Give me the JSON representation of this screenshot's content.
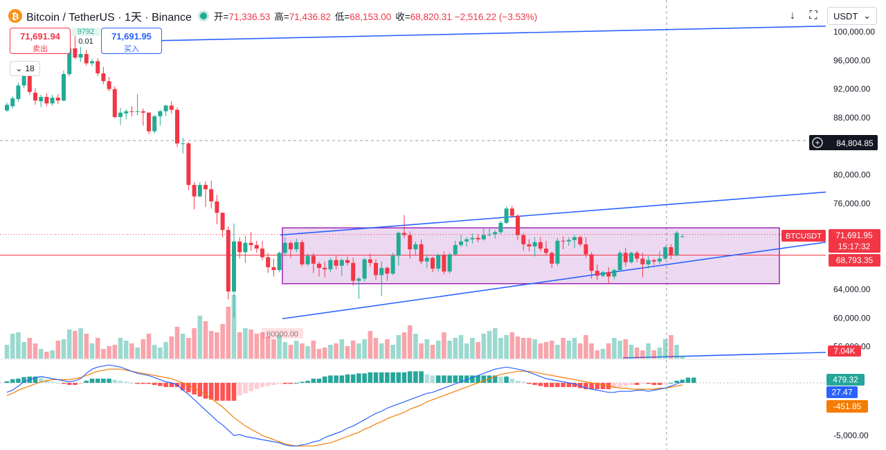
{
  "header": {
    "coin_glyph": "₿",
    "symbol": "Bitcoin / TetherUS · 1天 · Binance",
    "open_label": "开",
    "open": "71,336.53",
    "high_label": "高",
    "high": "71,436.82",
    "low_label": "低",
    "low": "68,153.00",
    "close_label": "收",
    "close": "68,820.31",
    "change": "−2,516.22 (−3.53%)",
    "download_icon": "↓",
    "fullscreen_icon": "⛶",
    "currency": "USDT",
    "currency_chevron": "⌄"
  },
  "trade": {
    "sell_price": "71,691.94",
    "sell_label": "卖出",
    "buy_price": "71,691.95",
    "buy_label": "买入",
    "spread_top": "9792",
    "spread_qty": "0.01"
  },
  "collapse": {
    "chevron": "⌄",
    "count": "18"
  },
  "chart_data": {
    "type": "candlestick",
    "title": "Bitcoin / TetherUS · 1天 · Binance",
    "y_ticks": [
      "100,000.00",
      "96,000.00",
      "92,000.00",
      "88,000.00",
      "80,000.00",
      "76,000.00",
      "64,000.00",
      "60,000.00",
      "56,000.00"
    ],
    "ylim": [
      53850,
      101350
    ],
    "candles": [
      [
        89000,
        90100,
        88800,
        89800
      ],
      [
        89600,
        91000,
        89300,
        90700
      ],
      [
        90600,
        92900,
        90200,
        92500
      ],
      [
        92500,
        94300,
        92100,
        93900
      ],
      [
        93900,
        94200,
        91200,
        91600
      ],
      [
        91500,
        92100,
        89800,
        90400
      ],
      [
        90300,
        91200,
        89500,
        90900
      ],
      [
        90900,
        91400,
        89600,
        90000
      ],
      [
        90000,
        91200,
        89700,
        90800
      ],
      [
        90800,
        91300,
        89900,
        90400
      ],
      [
        90400,
        94600,
        90300,
        94100
      ],
      [
        94100,
        98400,
        93800,
        97700
      ],
      [
        97700,
        99700,
        96200,
        96400
      ],
      [
        96400,
        97900,
        95800,
        96900
      ],
      [
        96900,
        97500,
        95300,
        95600
      ],
      [
        95600,
        96200,
        95200,
        95900
      ],
      [
        95900,
        96300,
        93800,
        94200
      ],
      [
        94200,
        95100,
        92700,
        93100
      ],
      [
        93100,
        93700,
        91700,
        92000
      ],
      [
        92000,
        92400,
        87900,
        88100
      ],
      [
        88100,
        89400,
        87000,
        88700
      ],
      [
        88600,
        89200,
        87800,
        88900
      ],
      [
        88900,
        89600,
        88200,
        88800
      ],
      [
        88800,
        91300,
        88300,
        88900
      ],
      [
        88900,
        89300,
        86900,
        88700
      ],
      [
        88700,
        88800,
        85700,
        86100
      ],
      [
        86100,
        88400,
        85800,
        88200
      ],
      [
        88200,
        89100,
        86900,
        88900
      ],
      [
        88900,
        89800,
        88200,
        89700
      ],
      [
        89700,
        90300,
        88600,
        89100
      ],
      [
        89100,
        89400,
        83900,
        84400
      ],
      [
        84400,
        85200,
        83000,
        84400
      ],
      [
        84400,
        84600,
        77900,
        78600
      ],
      [
        78600,
        79000,
        75200,
        77000
      ],
      [
        77000,
        79000,
        76900,
        78600
      ],
      [
        78600,
        79100,
        75500,
        78000
      ],
      [
        78000,
        79200,
        75300,
        76300
      ],
      [
        76300,
        77200,
        73100,
        74700
      ],
      [
        74700,
        74800,
        71300,
        72300
      ],
      [
        72300,
        72800,
        62600,
        63700
      ],
      [
        63700,
        73200,
        60000,
        70700
      ],
      [
        70700,
        71300,
        68300,
        69200
      ],
      [
        69200,
        71500,
        67700,
        70500
      ],
      [
        70500,
        72000,
        69400,
        70200
      ],
      [
        70200,
        70800,
        69100,
        69700
      ],
      [
        69700,
        70800,
        68100,
        68500
      ],
      [
        68500,
        69100,
        66300,
        67100
      ],
      [
        67100,
        68300,
        65800,
        66700
      ],
      [
        66700,
        69300,
        66400,
        69100
      ],
      [
        69100,
        71300,
        68700,
        70500
      ],
      [
        70500,
        70800,
        68400,
        69600
      ],
      [
        69600,
        71100,
        69200,
        70600
      ],
      [
        70600,
        70900,
        67200,
        67500
      ],
      [
        67500,
        69000,
        67300,
        68700
      ],
      [
        68700,
        69100,
        66300,
        67600
      ],
      [
        67600,
        67900,
        65800,
        67000
      ],
      [
        67000,
        67900,
        65700,
        66800
      ],
      [
        66800,
        68400,
        66400,
        68100
      ],
      [
        68100,
        68700,
        66800,
        67300
      ],
      [
        67300,
        68300,
        65900,
        68100
      ],
      [
        68100,
        68600,
        67300,
        67700
      ],
      [
        67700,
        68400,
        64500,
        65200
      ],
      [
        65200,
        65700,
        62700,
        65500
      ],
      [
        65500,
        68400,
        65100,
        68200
      ],
      [
        68200,
        69000,
        67200,
        67700
      ],
      [
        67700,
        68200,
        65300,
        66000
      ],
      [
        66000,
        67900,
        63100,
        67000
      ],
      [
        67000,
        67200,
        65200,
        66200
      ],
      [
        66200,
        69100,
        66000,
        68700
      ],
      [
        68700,
        72100,
        67300,
        71900
      ],
      [
        71900,
        74400,
        71100,
        71600
      ],
      [
        71600,
        72100,
        68300,
        69600
      ],
      [
        69600,
        70700,
        68700,
        70300
      ],
      [
        70300,
        71000,
        67500,
        67900
      ],
      [
        67900,
        68800,
        67000,
        68400
      ],
      [
        68400,
        68600,
        66400,
        66900
      ],
      [
        66900,
        69000,
        66500,
        68800
      ],
      [
        68800,
        69300,
        66100,
        66500
      ],
      [
        66500,
        69100,
        66200,
        68900
      ],
      [
        68900,
        70800,
        68700,
        70200
      ],
      [
        70200,
        71600,
        69900,
        70700
      ],
      [
        70700,
        71300,
        70000,
        71000
      ],
      [
        71000,
        71800,
        70400,
        71200
      ],
      [
        71200,
        71700,
        70600,
        71000
      ],
      [
        71000,
        72700,
        70800,
        71600
      ],
      [
        71600,
        72600,
        71400,
        71700
      ],
      [
        71700,
        72300,
        71100,
        72000
      ],
      [
        72000,
        73600,
        71700,
        73300
      ],
      [
        73300,
        75600,
        73100,
        75300
      ],
      [
        75300,
        75700,
        74000,
        74300
      ],
      [
        74300,
        74500,
        70900,
        71600
      ],
      [
        71600,
        71900,
        69400,
        70300
      ],
      [
        70300,
        71000,
        69300,
        70000
      ],
      [
        70000,
        71300,
        68600,
        70600
      ],
      [
        70600,
        71300,
        69300,
        69700
      ],
      [
        69700,
        70800,
        68800,
        69100
      ],
      [
        69100,
        69300,
        67000,
        67600
      ],
      [
        67600,
        71200,
        67300,
        70800
      ],
      [
        70800,
        71400,
        69600,
        70700
      ],
      [
        70700,
        71300,
        70100,
        70900
      ],
      [
        70900,
        71600,
        69800,
        71300
      ],
      [
        71300,
        71500,
        70000,
        70300
      ],
      [
        70300,
        71300,
        68400,
        68900
      ],
      [
        68900,
        69200,
        65500,
        66600
      ],
      [
        66600,
        67500,
        65300,
        65900
      ],
      [
        65900,
        66600,
        65700,
        66400
      ],
      [
        66400,
        67100,
        64800,
        65800
      ],
      [
        65800,
        66900,
        65400,
        66700
      ],
      [
        66700,
        69400,
        66500,
        69100
      ],
      [
        69100,
        69800,
        67200,
        67800
      ],
      [
        67800,
        69300,
        67600,
        69100
      ],
      [
        69100,
        69400,
        67800,
        68300
      ],
      [
        68300,
        69100,
        65700,
        67500
      ],
      [
        67500,
        68700,
        66900,
        68100
      ],
      [
        68100,
        68300,
        67400,
        67900
      ],
      [
        67900,
        69300,
        67500,
        68300
      ],
      [
        68300,
        70100,
        68100,
        69900
      ],
      [
        69900,
        70300,
        68200,
        68800
      ],
      [
        68800,
        72200,
        68600,
        71900
      ],
      [
        71300,
        71700,
        71300,
        71400
      ]
    ],
    "volume": [
      20,
      36,
      38,
      24,
      30,
      22,
      14,
      10,
      12,
      26,
      28,
      42,
      40,
      44,
      36,
      22,
      30,
      14,
      18,
      20,
      30,
      26,
      22,
      16,
      28,
      36,
      20,
      16,
      24,
      32,
      46,
      36,
      30,
      44,
      62,
      54,
      40,
      38,
      50,
      75,
      92,
      38,
      44,
      42,
      36,
      38,
      32,
      28,
      34,
      24,
      20,
      26,
      22,
      18,
      26,
      14,
      16,
      20,
      22,
      28,
      18,
      26,
      22,
      28,
      40,
      30,
      22,
      28,
      20,
      34,
      38,
      48,
      36,
      22,
      28,
      20,
      26,
      38,
      26,
      30,
      34,
      22,
      30,
      24,
      36,
      40,
      44,
      30,
      34,
      38,
      32,
      30,
      30,
      28,
      22,
      24,
      26,
      20,
      30,
      26,
      30,
      22,
      34,
      22,
      12,
      14,
      22,
      30,
      26,
      28,
      20,
      16,
      12,
      22,
      12,
      16,
      28,
      34,
      20,
      4
    ],
    "macd_line": [
      -900,
      -700,
      -300,
      100,
      300,
      500,
      600,
      500,
      400,
      300,
      200,
      100,
      200,
      400,
      900,
      1300,
      1500,
      1600,
      1700,
      1600,
      1500,
      1300,
      1100,
      900,
      800,
      700,
      500,
      300,
      100,
      0,
      -200,
      -700,
      -1100,
      -1600,
      -2100,
      -2600,
      -3100,
      -3600,
      -4000,
      -4500,
      -5000,
      -4900,
      -5100,
      -5200,
      -5300,
      -5400,
      -5500,
      -5600,
      -5700,
      -5900,
      -6000,
      -6000,
      -5900,
      -5800,
      -5600,
      -5500,
      -5200,
      -5000,
      -4800,
      -4600,
      -4300,
      -4100,
      -3800,
      -3500,
      -3200,
      -2900,
      -2700,
      -2400,
      -2200,
      -2000,
      -1800,
      -1600,
      -1400,
      -1200,
      -1000,
      -900,
      -700,
      -500,
      -300,
      -100,
      100,
      300,
      500,
      700,
      900,
      1100,
      1300,
      1400,
      1500,
      1400,
      1300,
      1200,
      1000,
      800,
      600,
      400,
      300,
      200,
      100,
      0,
      -100,
      -300,
      -500,
      -600,
      -700,
      -800,
      -900,
      -900,
      -800,
      -800,
      -800,
      -700,
      -700,
      -800,
      -700,
      -600,
      -500,
      -300,
      -100,
      100
    ],
    "signal_line": [
      -1200,
      -1000,
      -700,
      -500,
      -300,
      -100,
      100,
      200,
      300,
      300,
      300,
      300,
      400,
      500,
      700,
      900,
      1100,
      1200,
      1300,
      1300,
      1300,
      1200,
      1100,
      1000,
      900,
      800,
      700,
      600,
      500,
      400,
      200,
      0,
      -200,
      -500,
      -800,
      -1100,
      -1500,
      -1900,
      -2300,
      -2800,
      -3300,
      -3700,
      -4100,
      -4400,
      -4700,
      -5000,
      -5200,
      -5400,
      -5600,
      -5800,
      -5900,
      -6000,
      -6000,
      -6000,
      -6000,
      -5900,
      -5800,
      -5700,
      -5500,
      -5300,
      -5100,
      -4900,
      -4700,
      -4400,
      -4200,
      -3900,
      -3700,
      -3400,
      -3200,
      -3000,
      -2800,
      -2500,
      -2300,
      -2100,
      -1800,
      -1600,
      -1400,
      -1200,
      -1000,
      -800,
      -600,
      -400,
      -200,
      0,
      200,
      400,
      600,
      800,
      900,
      1000,
      1100,
      1100,
      1100,
      1000,
      900,
      800,
      700,
      600,
      500,
      400,
      300,
      200,
      100,
      0,
      -100,
      -200,
      -300,
      -400,
      -500,
      -500,
      -600,
      -600,
      -600,
      -600,
      -600,
      -500,
      -500,
      -400,
      -300,
      -200
    ],
    "histogram": [
      150,
      350,
      400,
      550,
      600,
      600,
      500,
      300,
      100,
      0,
      -100,
      -200,
      -200,
      -100,
      200,
      400,
      400,
      400,
      400,
      300,
      200,
      100,
      0,
      -100,
      -100,
      -100,
      -200,
      -300,
      -400,
      -400,
      -400,
      -700,
      -900,
      -1100,
      -1300,
      -1500,
      -1600,
      -1700,
      -1700,
      -1700,
      -1700,
      -1200,
      -1000,
      -800,
      -600,
      -400,
      -300,
      -200,
      -100,
      -100,
      -100,
      0,
      100,
      200,
      400,
      400,
      600,
      700,
      700,
      700,
      800,
      800,
      900,
      900,
      1000,
      1000,
      1000,
      1000,
      1000,
      1000,
      1000,
      1100,
      1100,
      1100,
      800,
      700,
      700,
      700,
      700,
      700,
      700,
      700,
      700,
      700,
      700,
      700,
      700,
      600,
      600,
      400,
      200,
      100,
      -100,
      -200,
      -300,
      -400,
      -400,
      -400,
      -400,
      -400,
      -400,
      -500,
      -600,
      -600,
      -600,
      -600,
      -600,
      -500,
      -400,
      -300,
      -200,
      -200,
      -100,
      -100,
      -200,
      -200,
      -100,
      0,
      200,
      300,
      500,
      500
    ],
    "price_labels": {
      "crosshair": "84,804.85",
      "symbol_tag": "BTCUSDT",
      "last_price": "71,691.95",
      "countdown": "15:17:32",
      "ma_price": "68,793.35",
      "volume_tag": "7.04K",
      "box_label": "60000.00",
      "macd_hist": "479.32",
      "macd_line_val": "27.47",
      "macd_signal_val": "-451.85",
      "macd_tick": "-5,000.00"
    },
    "drawings": {
      "box_range": [
        64800,
        72600
      ],
      "resistance_line": [
        98600,
        100800
      ],
      "channel_upper": [
        71600,
        77600
      ],
      "channel_lower": [
        59900,
        70600
      ],
      "support_line_price": 68793
    },
    "colors": {
      "up": "#22ab94",
      "down": "#f23645",
      "line": "#2962ff",
      "box": "#9c27b0",
      "signal": "#f57c00",
      "macd": "#2962ff"
    }
  }
}
